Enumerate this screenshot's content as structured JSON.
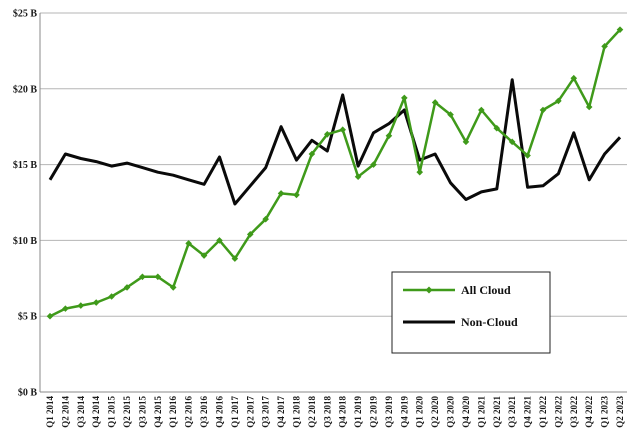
{
  "chart_data": {
    "type": "line",
    "title": "",
    "xlabel": "",
    "ylabel": "",
    "ylim": [
      0,
      25
    ],
    "yticks": [
      0,
      5,
      10,
      15,
      20,
      25
    ],
    "ytick_labels": [
      "$0 B",
      "$5 B",
      "$10 B",
      "$15 B",
      "$20 B",
      "$25 B"
    ],
    "grid": true,
    "legend_placement": "lower-right",
    "categories": [
      "Q1 2014",
      "Q2 2014",
      "Q3 2014",
      "Q4 2014",
      "Q1 2015",
      "Q2 2015",
      "Q3 2015",
      "Q4 2015",
      "Q1 2016",
      "Q2 2016",
      "Q3 2016",
      "Q4 2016",
      "Q1 2017",
      "Q2 2017",
      "Q3 2017",
      "Q4 2017",
      "Q1 2018",
      "Q2 2018",
      "Q3 2018",
      "Q4 2018",
      "Q1 2019",
      "Q2 2019",
      "Q3 2019",
      "Q4 2019",
      "Q1 2020",
      "Q2 2020",
      "Q3 2020",
      "Q4 2020",
      "Q1 2021",
      "Q2 2021",
      "Q3 2021",
      "Q4 2021",
      "Q1 2022",
      "Q2 2022",
      "Q3 2022",
      "Q4 2022",
      "Q1 2023",
      "Q2 2023"
    ],
    "series": [
      {
        "name": "All Cloud",
        "color": "#3f9a1a",
        "marker": "diamond",
        "values": [
          5.0,
          5.5,
          5.7,
          5.9,
          6.3,
          6.9,
          7.6,
          7.6,
          6.9,
          9.8,
          9.0,
          10.0,
          8.8,
          10.4,
          11.4,
          13.1,
          13.0,
          15.7,
          17.0,
          17.3,
          14.2,
          15.0,
          16.9,
          19.4,
          14.5,
          19.1,
          18.3,
          16.5,
          18.6,
          17.4,
          16.5,
          15.6,
          18.6,
          19.2,
          20.7,
          18.8,
          22.8,
          23.9
        ]
      },
      {
        "name": "Non-Cloud",
        "color": "#0a0a0a",
        "marker": "none",
        "values": [
          14.0,
          15.7,
          15.4,
          15.2,
          14.9,
          15.1,
          14.8,
          14.5,
          14.3,
          14.0,
          13.7,
          15.5,
          12.4,
          13.6,
          14.8,
          17.5,
          15.3,
          16.6,
          15.9,
          19.6,
          14.9,
          17.1,
          17.7,
          18.6,
          15.3,
          15.7,
          13.8,
          12.7,
          13.2,
          13.4,
          20.6,
          13.5,
          13.6,
          14.4,
          17.1,
          14.0,
          15.7,
          16.8
        ]
      }
    ]
  }
}
